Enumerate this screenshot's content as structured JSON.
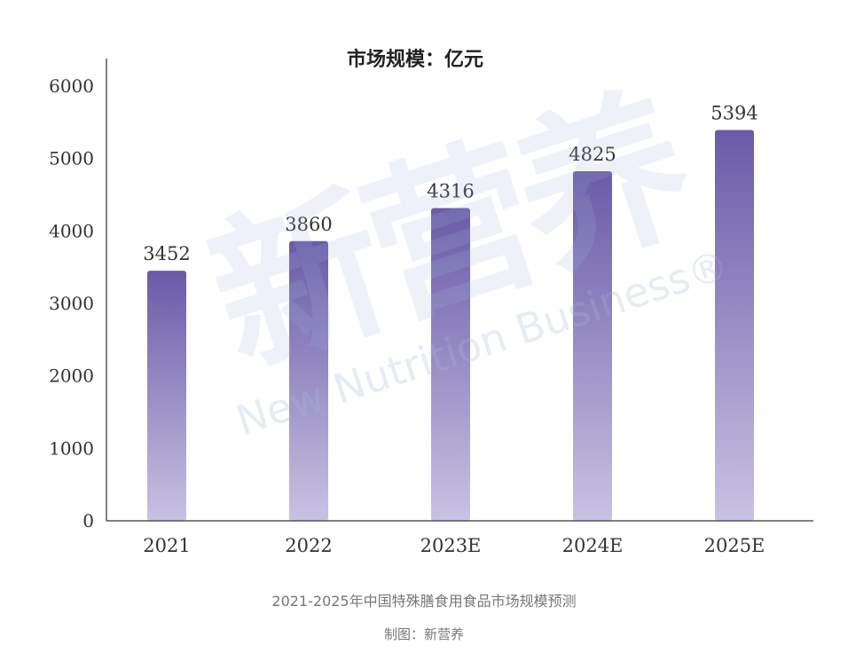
{
  "chart_data": {
    "type": "bar",
    "title": "市场规模：亿元",
    "categories": [
      "2021",
      "2022",
      "2023E",
      "2024E",
      "2025E"
    ],
    "values": [
      3452,
      3860,
      4316,
      4825,
      5394
    ],
    "ylim": [
      0,
      6000
    ],
    "yticks": [
      0,
      1000,
      2000,
      3000,
      4000,
      5000,
      6000
    ],
    "grid": false,
    "colors": {
      "bar_top": "#6a5aa8",
      "bar_bottom": "#c9c2e2",
      "axis": "#555555"
    }
  },
  "watermark": {
    "cn": "新营养",
    "en": "New Nutrition Business",
    "reg": "®"
  },
  "caption": {
    "main": "2021-2025年中国特殊膳食用食品市场规模预测",
    "sub": "制图：新营养"
  }
}
